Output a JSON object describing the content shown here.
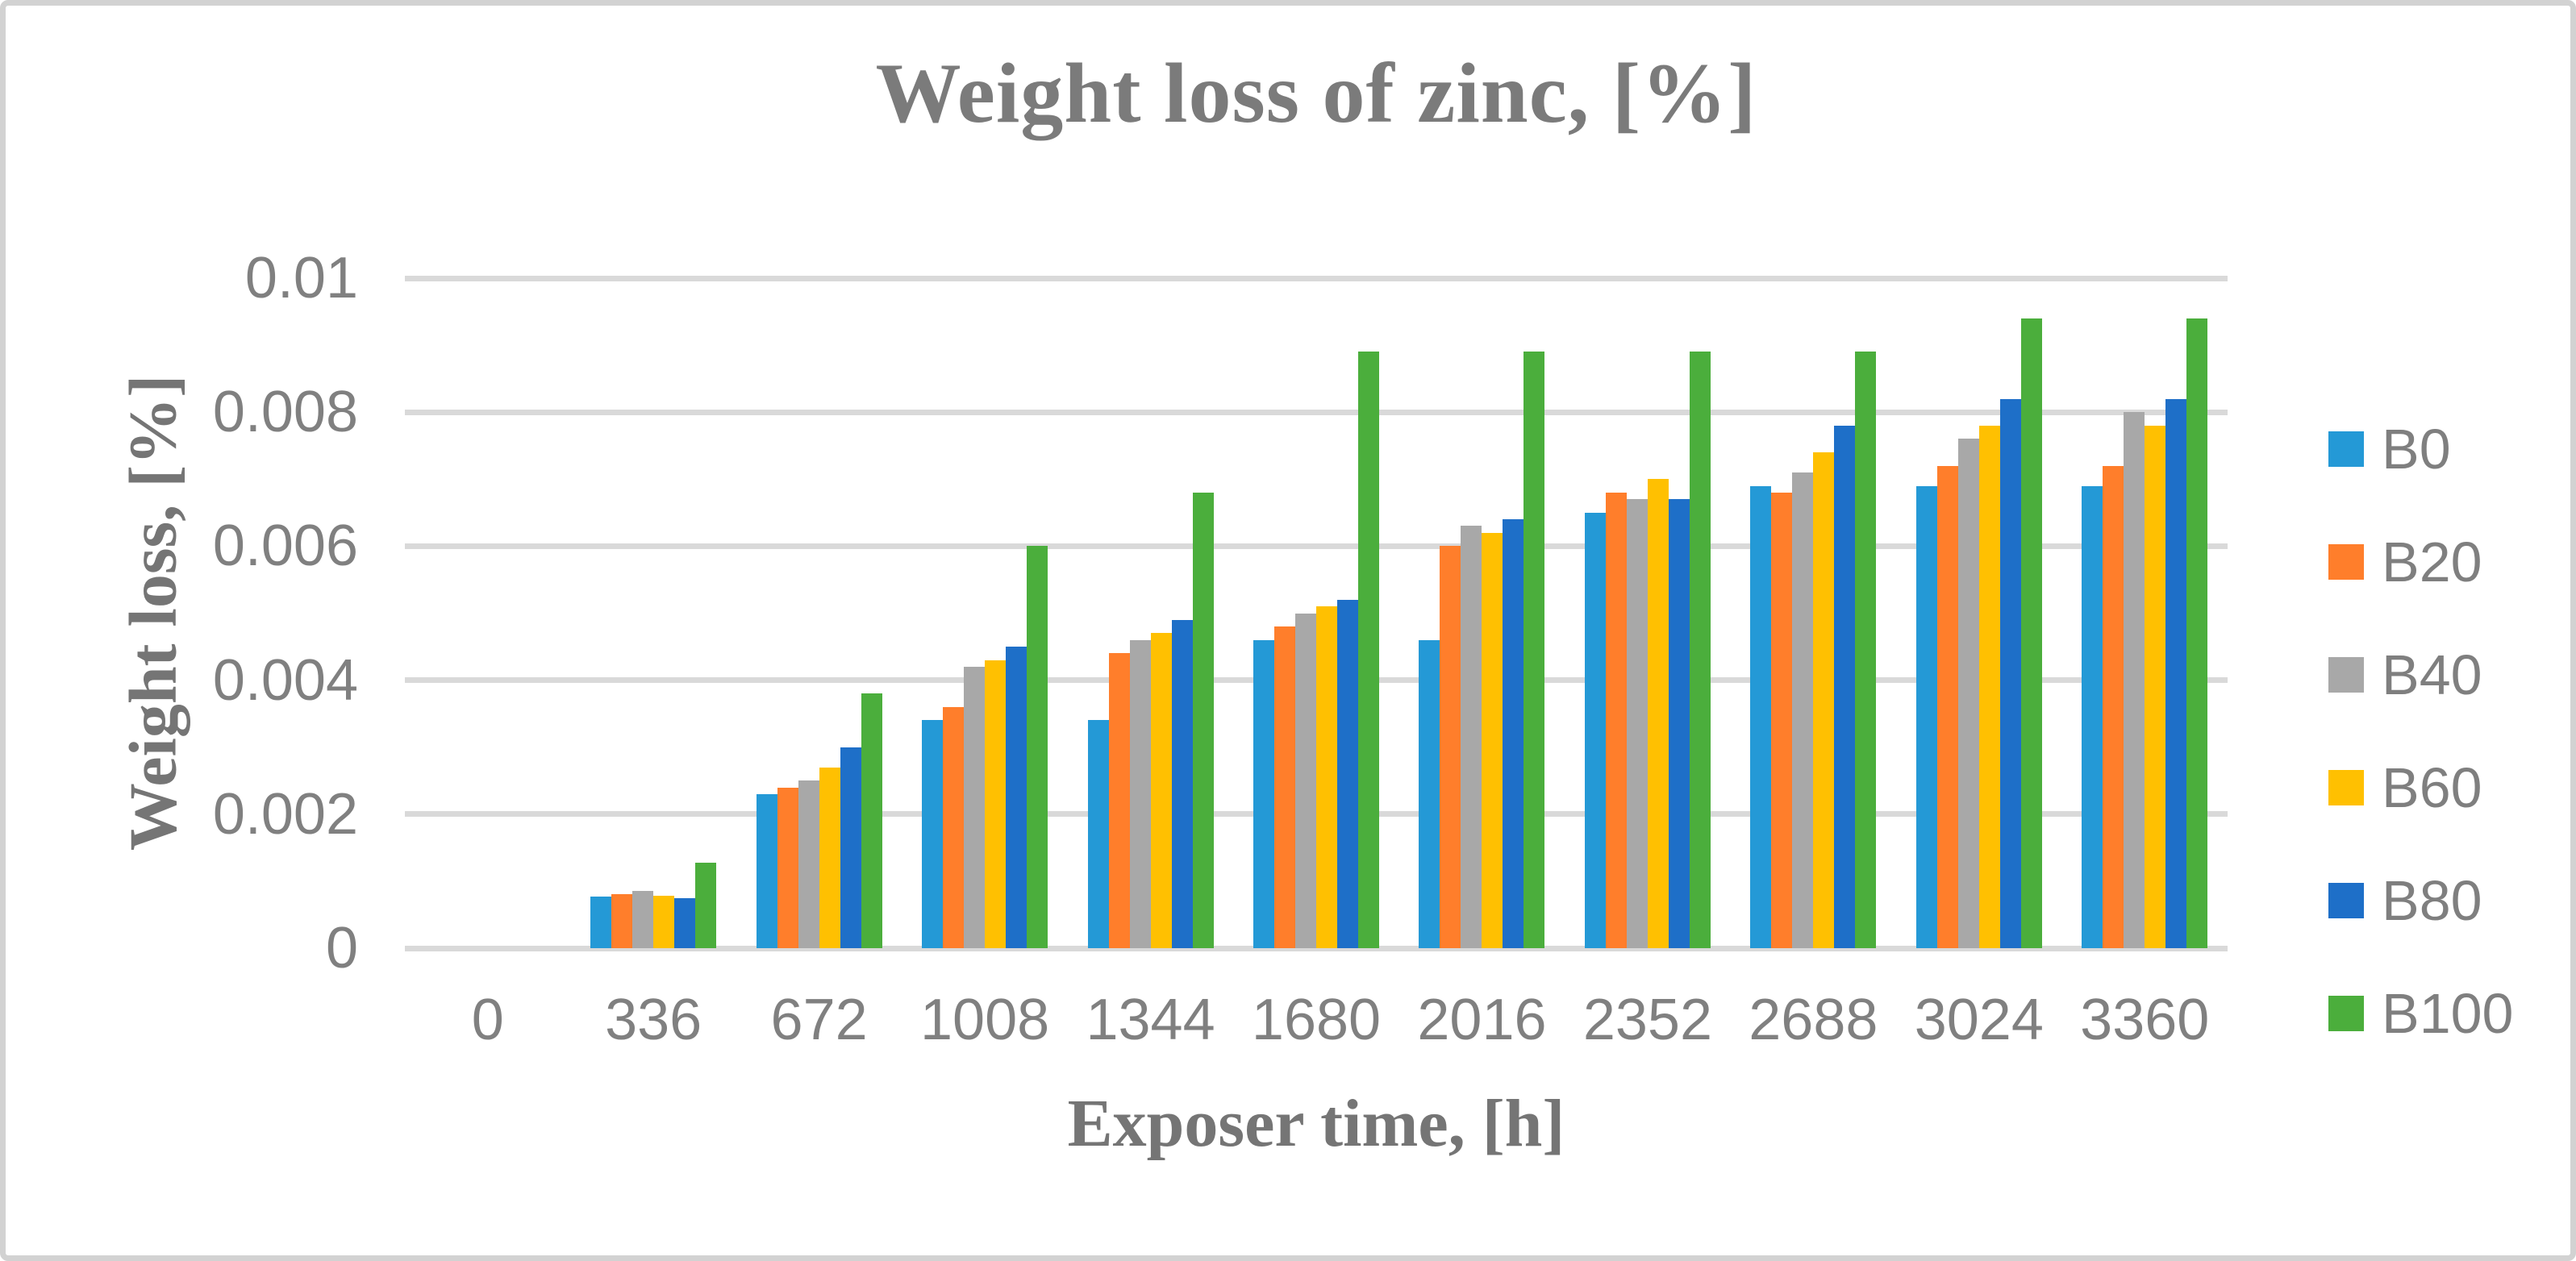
{
  "figure": {
    "title": "Weight loss of zinc, [%]",
    "x_axis_title": "Exposer time, [h]",
    "y_axis_title": "Weight loss, [%]"
  },
  "palette": {
    "gridline": "#d9d9d9",
    "axis_line": "#d9d9d9",
    "tick_text": "#808080",
    "title_text": "#7b7b7b",
    "border": "#d2d2d2"
  },
  "chart_data": {
    "type": "bar",
    "title": "Weight loss of zinc, [%]",
    "xlabel": "Exposer time, [h]",
    "ylabel": "Weight loss, [%]",
    "ylim": [
      0,
      0.01
    ],
    "grid": true,
    "legend_position": "right",
    "ytick_labels": [
      "0",
      "0.002",
      "0.004",
      "0.006",
      "0.008",
      "0.01"
    ],
    "categories": [
      "0",
      "336",
      "672",
      "1008",
      "1344",
      "1680",
      "2016",
      "2352",
      "2688",
      "3024",
      "3360"
    ],
    "series": [
      {
        "name": "B0",
        "color": "#2499d6",
        "values": [
          0,
          0.00077,
          0.0023,
          0.0034,
          0.0034,
          0.0046,
          0.0046,
          0.0065,
          0.0069,
          0.0069,
          0.0069
        ]
      },
      {
        "name": "B20",
        "color": "#ff7e2b",
        "values": [
          0,
          0.00081,
          0.0024,
          0.0036,
          0.0044,
          0.0048,
          0.006,
          0.0068,
          0.0068,
          0.0072,
          0.0072
        ]
      },
      {
        "name": "B40",
        "color": "#a8a8a8",
        "values": [
          0,
          0.00085,
          0.0025,
          0.0042,
          0.0046,
          0.005,
          0.0063,
          0.0067,
          0.0071,
          0.0076,
          0.008
        ]
      },
      {
        "name": "B60",
        "color": "#ffc001",
        "values": [
          0,
          0.00078,
          0.0027,
          0.0043,
          0.0047,
          0.0051,
          0.0062,
          0.007,
          0.0074,
          0.0078,
          0.0078
        ]
      },
      {
        "name": "B80",
        "color": "#1e6fc8",
        "values": [
          0,
          0.00075,
          0.003,
          0.0045,
          0.0049,
          0.0052,
          0.0064,
          0.0067,
          0.0078,
          0.0082,
          0.0082
        ]
      },
      {
        "name": "B100",
        "color": "#4bae3c",
        "values": [
          0,
          0.00128,
          0.0038,
          0.006,
          0.0068,
          0.0089,
          0.0089,
          0.0089,
          0.0089,
          0.0094,
          0.0094
        ]
      }
    ]
  }
}
